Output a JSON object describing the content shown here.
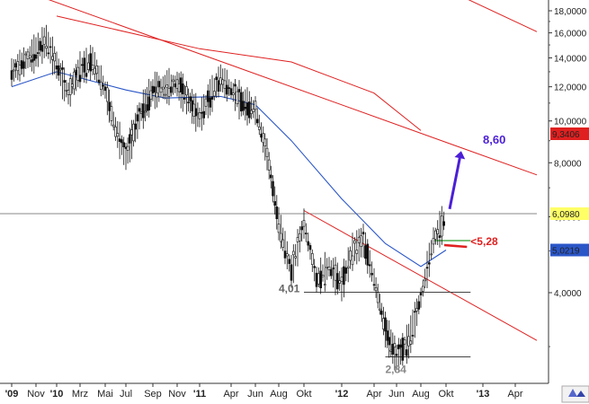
{
  "chart_data": {
    "type": "candlestick",
    "title": "",
    "xlabel": "",
    "ylabel": "",
    "y_scale": "log",
    "ylim": [
      2.2,
      20.5
    ],
    "grid": false,
    "x_tick_labels": [
      "'09",
      "Nov",
      "'10",
      "Mrz",
      "Mai",
      "Jul",
      "Sep",
      "Nov",
      "'11",
      "Apr",
      "Jun",
      "Aug",
      "Okt",
      "'12",
      "Apr",
      "Jun",
      "Aug",
      "Okt",
      "'13",
      "Apr"
    ],
    "y_tick_labels": [
      "18,0000",
      "16,0000",
      "14,0000",
      "12,0000",
      "10,0000",
      "8,0000",
      "6,0000",
      "4,0000"
    ],
    "y_tick_values": [
      18,
      16,
      14,
      12,
      10,
      8,
      6,
      4
    ],
    "price_markers": [
      {
        "label": "9,3406",
        "value": 9.3406,
        "color": "#e02020"
      },
      {
        "label": "6,0980",
        "value": 6.098,
        "color": "#ffff66"
      },
      {
        "label": "5,0219",
        "value": 5.0219,
        "color": "#2a56c8"
      }
    ],
    "price_path": [
      {
        "date": "2009-09",
        "value": 13.0
      },
      {
        "date": "2009-11",
        "value": 14.5
      },
      {
        "date": "2009-12",
        "value": 15.4
      },
      {
        "date": "2010-01",
        "value": 13.5
      },
      {
        "date": "2010-02",
        "value": 11.6
      },
      {
        "date": "2010-03",
        "value": 13.2
      },
      {
        "date": "2010-04",
        "value": 13.8
      },
      {
        "date": "2010-05",
        "value": 11.8
      },
      {
        "date": "2010-06",
        "value": 9.6
      },
      {
        "date": "2010-07",
        "value": 8.3
      },
      {
        "date": "2010-08",
        "value": 10.3
      },
      {
        "date": "2010-09",
        "value": 11.8
      },
      {
        "date": "2010-10",
        "value": 12.0
      },
      {
        "date": "2010-11",
        "value": 12.2
      },
      {
        "date": "2010-12",
        "value": 11.2
      },
      {
        "date": "2011-01",
        "value": 10.2
      },
      {
        "date": "2011-02",
        "value": 11.4
      },
      {
        "date": "2011-03",
        "value": 12.6
      },
      {
        "date": "2011-04",
        "value": 11.8
      },
      {
        "date": "2011-05",
        "value": 11.0
      },
      {
        "date": "2011-06",
        "value": 10.6
      },
      {
        "date": "2011-07",
        "value": 8.4
      },
      {
        "date": "2011-08",
        "value": 5.8
      },
      {
        "date": "2011-09",
        "value": 4.5
      },
      {
        "date": "2011-10",
        "value": 5.8
      },
      {
        "date": "2011-11",
        "value": 4.3
      },
      {
        "date": "2011-12",
        "value": 4.6
      },
      {
        "date": "2012-01",
        "value": 4.2
      },
      {
        "date": "2012-02",
        "value": 5.0
      },
      {
        "date": "2012-03",
        "value": 5.3
      },
      {
        "date": "2012-04",
        "value": 4.3
      },
      {
        "date": "2012-05",
        "value": 3.3
      },
      {
        "date": "2012-06",
        "value": 2.84
      },
      {
        "date": "2012-07",
        "value": 3.1
      },
      {
        "date": "2012-08",
        "value": 3.9
      },
      {
        "date": "2012-09",
        "value": 5.3
      },
      {
        "date": "2012-10",
        "value": 6.0
      }
    ],
    "moving_average": [
      {
        "date": "2009-09",
        "value": 12.0
      },
      {
        "date": "2010-01",
        "value": 13.0
      },
      {
        "date": "2010-07",
        "value": 11.8
      },
      {
        "date": "2010-10",
        "value": 11.3
      },
      {
        "date": "2011-03",
        "value": 11.4
      },
      {
        "date": "2011-06",
        "value": 10.9
      },
      {
        "date": "2011-09",
        "value": 9.0
      },
      {
        "date": "2012-01",
        "value": 6.6
      },
      {
        "date": "2012-05",
        "value": 5.2
      },
      {
        "date": "2012-08",
        "value": 4.6
      },
      {
        "date": "2012-10",
        "value": 5.0219
      }
    ],
    "lines": [
      {
        "name": "horizontal",
        "points": [
          [
            "2009-08",
            6.098
          ],
          [
            "2013-06",
            6.098
          ]
        ],
        "color": "#888888"
      },
      {
        "name": "upper-trend",
        "points": [
          [
            "2009-09",
            20.5
          ],
          [
            "2013-06",
            7.5
          ]
        ],
        "color": "#e02020"
      },
      {
        "name": "long-term-trend",
        "points": [
          [
            "2012-10",
            20.2
          ],
          [
            "2013-06",
            16.1
          ]
        ],
        "color": "#e02020"
      },
      {
        "name": "slow-average",
        "points": [
          [
            "2010-01",
            17.5
          ],
          [
            "2011-01",
            14.7
          ],
          [
            "2011-09",
            13.7
          ],
          [
            "2012-04",
            11.6
          ],
          [
            "2012-08",
            9.5
          ]
        ],
        "color": "#e02020"
      },
      {
        "name": "lower-trend",
        "points": [
          [
            "2011-10",
            6.2
          ],
          [
            "2013-06",
            3.1
          ]
        ],
        "color": "#e02020"
      },
      {
        "name": "support-4,01",
        "points": [
          [
            "2011-10",
            4.01
          ],
          [
            "2012-12",
            4.01
          ]
        ],
        "color": "#444444"
      },
      {
        "name": "support-2,84",
        "points": [
          [
            "2012-05",
            2.84
          ],
          [
            "2012-12",
            2.84
          ]
        ],
        "color": "#444444"
      },
      {
        "name": "green-level",
        "points": [
          [
            "2012-09",
            5.28
          ],
          [
            "2012-12",
            5.28
          ]
        ],
        "color": "#2a9a2a"
      }
    ],
    "annotations": [
      {
        "text": "8,60",
        "value": 8.6,
        "color": "#4b1fd6"
      },
      {
        "text": "<5,28",
        "value": 5.28,
        "color": "#e02020"
      },
      {
        "text": "4,01",
        "value": 4.01,
        "color": "#666666"
      },
      {
        "text": "2,84",
        "value": 2.84,
        "color": "#888888"
      }
    ]
  }
}
